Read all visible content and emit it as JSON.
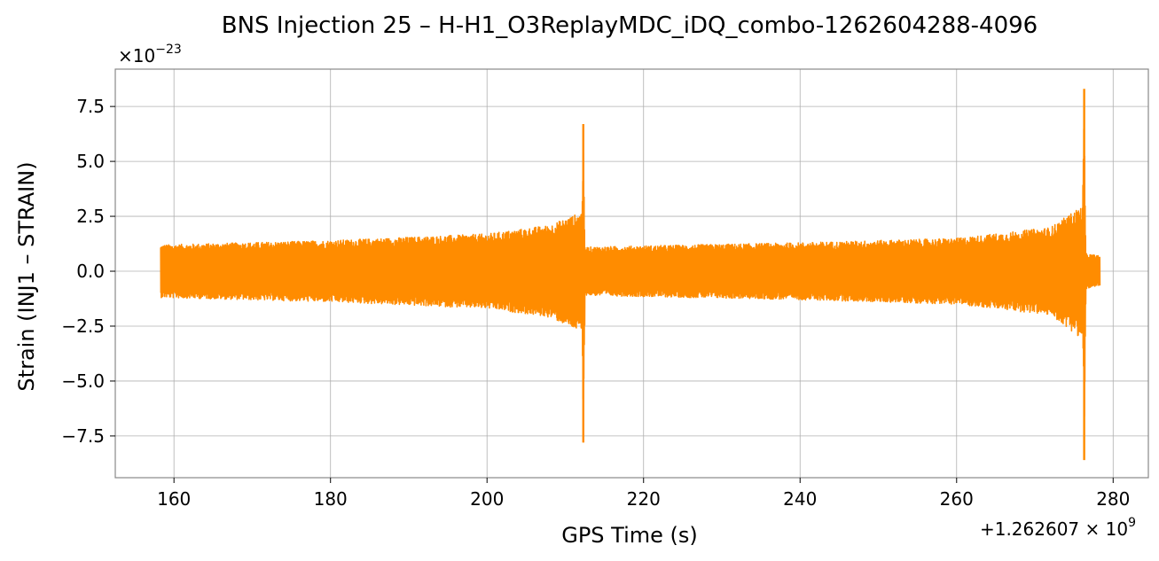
{
  "chart_data": {
    "type": "line",
    "title": "BNS Injection 25 – H-H1_O3ReplayMDC_iDQ_combo-1262604288-4096",
    "xlabel": "GPS Time (s)",
    "ylabel": "Strain (INJ1 – STRAIN)",
    "x_offset_label": "+1.262607 × 10",
    "x_offset_exponent": "9",
    "y_multiplier_label": "×10",
    "y_multiplier_exponent": "−23",
    "xlim": [
      152.5,
      284.5
    ],
    "ylim": [
      -9.4,
      9.2
    ],
    "x_ticks": [
      160,
      180,
      200,
      220,
      240,
      260,
      280
    ],
    "x_tick_labels": [
      "160",
      "180",
      "200",
      "220",
      "240",
      "260",
      "280"
    ],
    "y_ticks": [
      7.5,
      5.0,
      2.5,
      0.0,
      -2.5,
      -5.0,
      -7.5
    ],
    "y_tick_labels": [
      "7.5",
      "5.0",
      "2.5",
      "0.0",
      "−2.5",
      "−5.0",
      "−7.5"
    ],
    "grid": true,
    "series": [
      {
        "color": "#ff8c00",
        "x_range": [
          158.3,
          278.3
        ],
        "baseline_envelope": [
          {
            "x": 158.3,
            "upper": 1.2,
            "lower": -1.2
          },
          {
            "x": 180,
            "upper": 1.4,
            "lower": -1.4
          },
          {
            "x": 200,
            "upper": 1.7,
            "lower": -1.7
          },
          {
            "x": 208,
            "upper": 2.1,
            "lower": -2.1
          },
          {
            "x": 212.1,
            "upper": 2.7,
            "lower": -2.8
          },
          {
            "x": 212.3,
            "upper": 6.7,
            "lower": -7.8
          },
          {
            "x": 212.5,
            "upper": 1.1,
            "lower": -1.1
          },
          {
            "x": 240,
            "upper": 1.3,
            "lower": -1.3
          },
          {
            "x": 260,
            "upper": 1.5,
            "lower": -1.5
          },
          {
            "x": 272,
            "upper": 2.0,
            "lower": -2.0
          },
          {
            "x": 276.1,
            "upper": 3.0,
            "lower": -3.1
          },
          {
            "x": 276.3,
            "upper": 8.3,
            "lower": -8.6
          },
          {
            "x": 276.5,
            "upper": 0.8,
            "lower": -0.8
          },
          {
            "x": 278.3,
            "upper": 0.7,
            "lower": -0.7
          }
        ]
      }
    ]
  }
}
